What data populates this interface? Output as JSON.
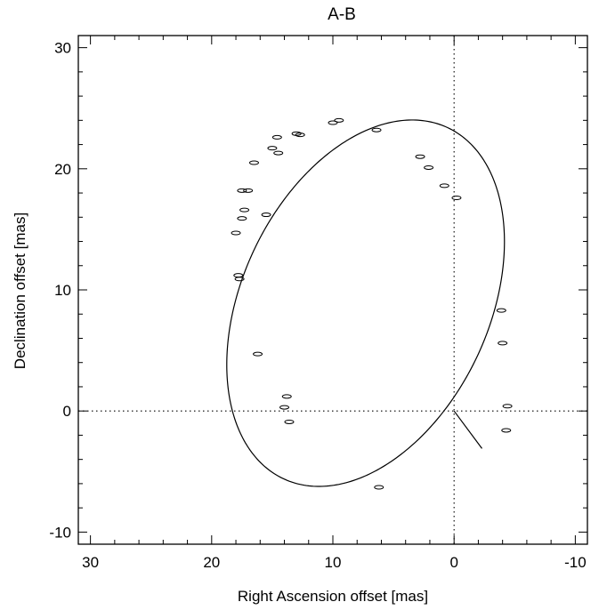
{
  "chart_data": {
    "type": "scatter",
    "title": "A-B",
    "xlabel": "Right Ascension offset [mas]",
    "ylabel": "Declination offset [mas]",
    "xlim": [
      31,
      -11
    ],
    "ylim": [
      -11,
      31
    ],
    "x_ticks": [
      30,
      20,
      10,
      0,
      -10
    ],
    "y_ticks": [
      -10,
      0,
      10,
      20,
      30
    ],
    "x_tick_labels": [
      "30",
      "20",
      "10",
      "0",
      "-10"
    ],
    "y_tick_labels": [
      "-10",
      "0",
      "10",
      "20",
      "30"
    ],
    "reference_lines": {
      "x": 0,
      "y": 0,
      "style": "dotted"
    },
    "grid": false,
    "orbit": {
      "center": [
        7.3,
        8.9
      ],
      "semi_axes": [
        10.2,
        16.0
      ],
      "rotation_deg": 25
    },
    "periastron_line": {
      "from": [
        0,
        0
      ],
      "to": [
        -2.3,
        -3.1
      ]
    },
    "series": [
      {
        "points": [
          {
            "x": 10.0,
            "y": 23.8
          },
          {
            "x": 9.5,
            "y": 24.0
          },
          {
            "x": 6.4,
            "y": 23.2
          },
          {
            "x": 13.0,
            "y": 22.9
          },
          {
            "x": 14.6,
            "y": 22.6
          },
          {
            "x": 12.7,
            "y": 22.8
          },
          {
            "x": 15.0,
            "y": 21.7
          },
          {
            "x": 14.5,
            "y": 21.3
          },
          {
            "x": 16.5,
            "y": 20.5
          },
          {
            "x": 2.8,
            "y": 21.0
          },
          {
            "x": 2.1,
            "y": 20.1
          },
          {
            "x": 0.8,
            "y": 18.6
          },
          {
            "x": 17.0,
            "y": 18.2
          },
          {
            "x": 17.5,
            "y": 18.2
          },
          {
            "x": 17.3,
            "y": 16.6
          },
          {
            "x": 15.5,
            "y": 16.2
          },
          {
            "x": 17.5,
            "y": 15.9
          },
          {
            "x": 18.0,
            "y": 14.7
          },
          {
            "x": 17.8,
            "y": 11.2
          },
          {
            "x": 17.7,
            "y": 10.9
          },
          {
            "x": 16.2,
            "y": 4.7
          },
          {
            "x": 13.8,
            "y": 1.2
          },
          {
            "x": 14.0,
            "y": 0.3
          },
          {
            "x": 13.6,
            "y": -0.9
          },
          {
            "x": 6.2,
            "y": -6.3
          },
          {
            "x": -3.9,
            "y": 8.3
          },
          {
            "x": -4.0,
            "y": 5.6
          },
          {
            "x": -4.4,
            "y": 0.4
          },
          {
            "x": -4.3,
            "y": -1.6
          },
          {
            "x": -0.2,
            "y": 17.6
          }
        ]
      }
    ]
  }
}
